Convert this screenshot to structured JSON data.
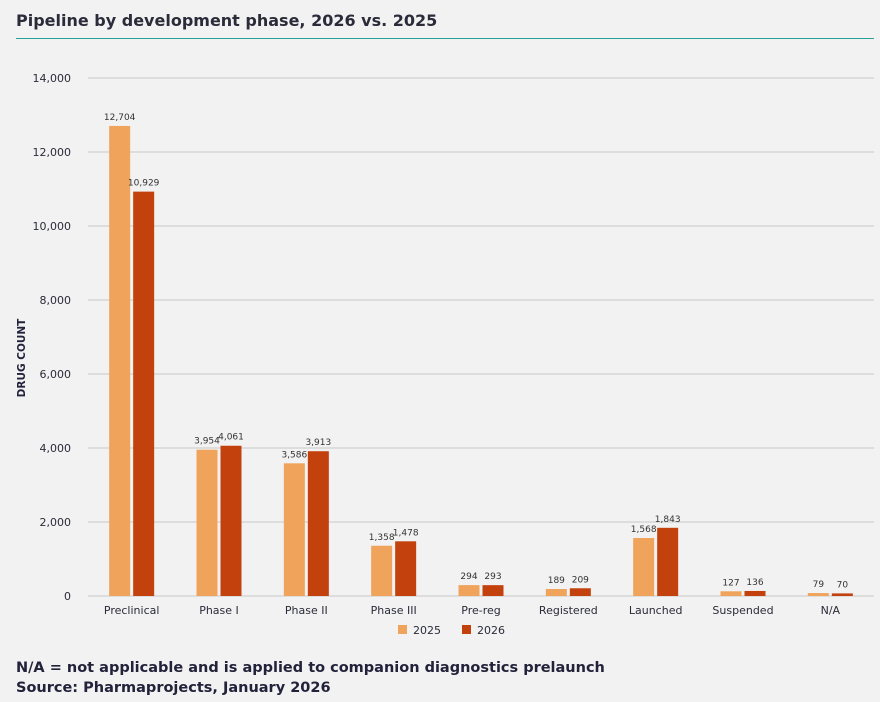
{
  "title": "Pipeline by development phase, 2026 vs. 2025",
  "footnotes": {
    "na_note": "N/A = not applicable and is applied to companion diagnostics prelaunch",
    "source": "Source: Pharmaprojects, January 2026"
  },
  "colors": {
    "series_2025": "#f0a35a",
    "series_2026": "#c2410c",
    "grid": "#c8c8c8",
    "text": "#2b2b3a"
  },
  "chart_data": {
    "type": "bar",
    "title": "Pipeline by development phase, 2026 vs. 2025",
    "xlabel": "",
    "ylabel": "DRUG COUNT",
    "ylim": [
      0,
      14000
    ],
    "yticks": [
      0,
      2000,
      4000,
      6000,
      8000,
      10000,
      12000,
      14000
    ],
    "ytick_labels": [
      "0",
      "2,000",
      "4,000",
      "6,000",
      "8,000",
      "10,000",
      "12,000",
      "14,000"
    ],
    "grid": true,
    "legend_position": "bottom-center",
    "categories": [
      "Preclinical",
      "Phase I",
      "Phase II",
      "Phase III",
      "Pre-reg",
      "Registered",
      "Launched",
      "Suspended",
      "N/A"
    ],
    "series": [
      {
        "name": "2025",
        "values": [
          12704,
          3954,
          3586,
          1358,
          294,
          189,
          1568,
          127,
          79
        ],
        "labels": [
          "12,704",
          "3,954",
          "3,586",
          "1,358",
          "294",
          "189",
          "1,568",
          "127",
          "79"
        ]
      },
      {
        "name": "2026",
        "values": [
          10929,
          4061,
          3913,
          1478,
          293,
          209,
          1843,
          136,
          70
        ],
        "labels": [
          "10,929",
          "4,061",
          "3,913",
          "1,478",
          "293",
          "209",
          "1,843",
          "136",
          "70"
        ]
      }
    ]
  }
}
